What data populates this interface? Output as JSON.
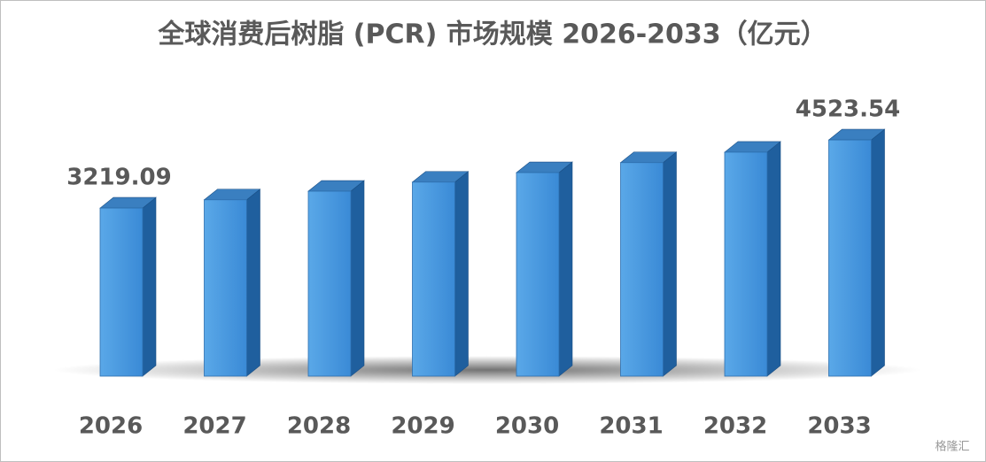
{
  "chart_data": {
    "type": "bar3d",
    "title": "全球消费后树脂 (PCR) 市场规模 2026-2033（亿元）",
    "categories": [
      "2026",
      "2027",
      "2028",
      "2029",
      "2030",
      "2031",
      "2032",
      "2033"
    ],
    "values": [
      3219.09,
      3377,
      3542,
      3716,
      3898,
      4089,
      4289,
      4523.54
    ],
    "value_labels": [
      "3219.09",
      null,
      null,
      null,
      null,
      null,
      null,
      "4523.54"
    ],
    "color": "#4a9be0",
    "ylim": [
      0,
      5000
    ],
    "watermark": "格隆汇"
  }
}
